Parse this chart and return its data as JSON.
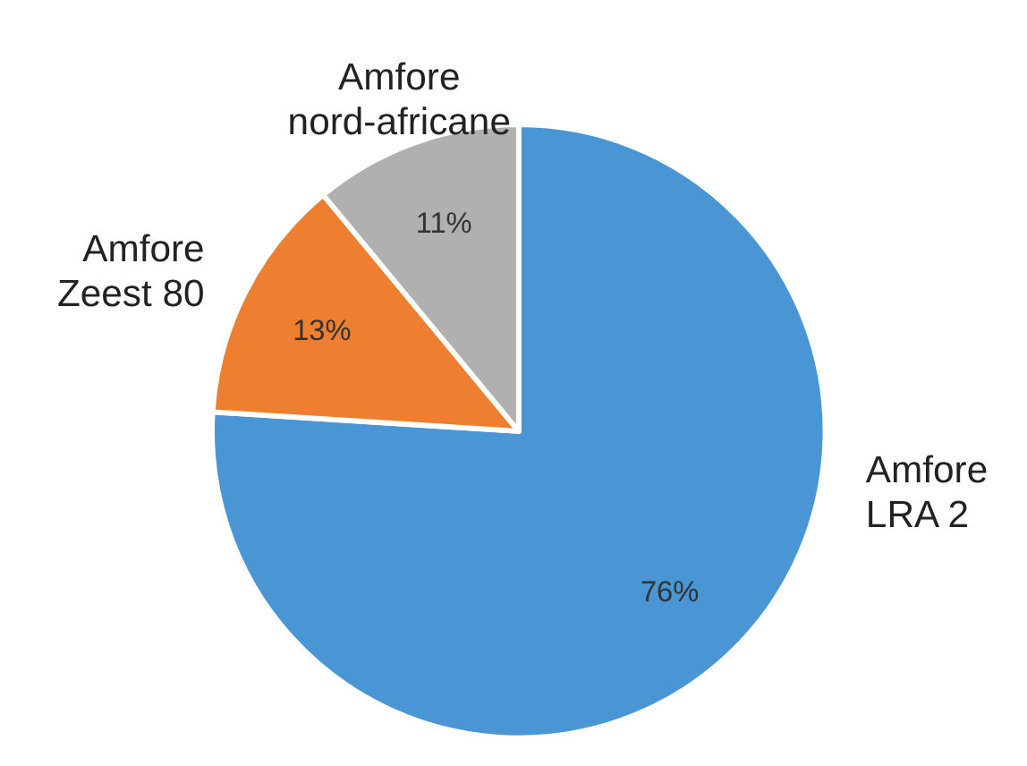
{
  "chart_data": {
    "type": "pie",
    "categories": [
      "Amfore LRA 2",
      "Amfore Zeest 80",
      "Amfore nord-africane"
    ],
    "values": [
      76,
      13,
      11
    ],
    "colors": [
      "#4a96d4",
      "#ef7f30",
      "#b0b0b0"
    ],
    "value_labels": [
      "76%",
      "13%",
      "11%"
    ]
  }
}
